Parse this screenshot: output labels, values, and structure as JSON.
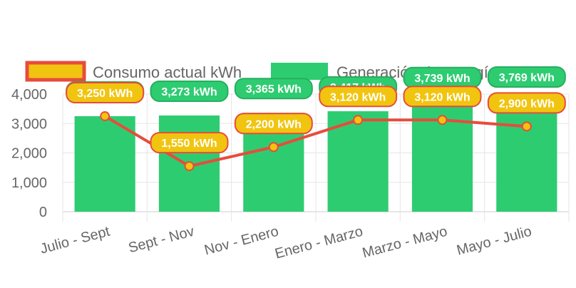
{
  "chart_data": {
    "type": "bar",
    "categories": [
      "Julio - Sept",
      "Sept - Nov",
      "Nov - Enero",
      "Enero - Marzo",
      "Marzo - Mayo",
      "Mayo - Julio"
    ],
    "ylim": [
      0,
      4000
    ],
    "yticks": [
      0,
      1000,
      2000,
      3000,
      4000
    ],
    "grid": true,
    "legend_position": "top",
    "series": [
      {
        "name": "Consumo actual kWh",
        "type": "line",
        "color": "#e74c3c",
        "fill": "#f1c40f",
        "values": [
          3250,
          1550,
          2200,
          3120,
          3120,
          2900
        ],
        "labels": [
          "3,250 kWh",
          "1,550 kWh",
          "2,200 kWh",
          "3,120 kWh",
          "3,120 kWh",
          "2,900 kWh"
        ]
      },
      {
        "name": "Generación de energía kWh",
        "type": "bar",
        "color": "#2ecc71",
        "values": [
          3250,
          3273,
          3365,
          3417,
          3739,
          3769
        ],
        "labels": [
          "3,250 kWh",
          "3,273 kWh",
          "3,365 kWh",
          "3,417 kWh",
          "3,739 kWh",
          "3,769 kWh"
        ]
      }
    ]
  }
}
